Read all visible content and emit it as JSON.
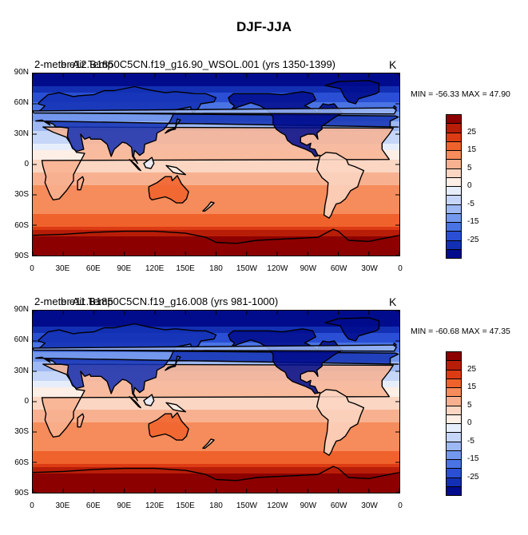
{
  "figure": {
    "title": "DJF-JJA",
    "lat_ticks": [
      "90N",
      "60N",
      "30N",
      "0",
      "30S",
      "60S",
      "90S"
    ],
    "lon_ticks": [
      "0",
      "30E",
      "60E",
      "90E",
      "120E",
      "150E",
      "180",
      "150W",
      "120W",
      "90W",
      "60W",
      "30W",
      "0"
    ],
    "colorbar_labels": [
      "25",
      "15",
      "5",
      "0",
      "-5",
      "-15",
      "-25"
    ],
    "colorbar_colors": [
      "#8c0000",
      "#b81d08",
      "#dc3b14",
      "#f0622c",
      "#f68b5b",
      "#f8b190",
      "#fbd6c3",
      "#fdeee6",
      "#e7eefb",
      "#c5d6f8",
      "#9db8f2",
      "#7397ec",
      "#4a73e4",
      "#2a4fd5",
      "#1330b4",
      "#000c8c"
    ]
  },
  "panels": [
    {
      "title_left": "2-meter Air Temp",
      "title_center": "b.e12.B1850C5CN.f19_g16.90_WSOL.001 (yrs 1350-1399)",
      "units": "K",
      "minmax": "MIN = -56.33 MAX =  47.90"
    },
    {
      "title_left": "2-meter Air Temp",
      "title_center": "b.e11.B1850C5CN.f19_g16.008 (yrs 981-1000)",
      "units": "K",
      "minmax": "MIN = -60.68 MAX =  47.35"
    }
  ],
  "chart_data": [
    {
      "type": "heatmap",
      "title": "2-meter Air Temp",
      "subtitle": "b.e12.B1850C5CN.f19_g16.90_WSOL.001 (yrs 1350-1399)",
      "units": "K",
      "min": -56.33,
      "max": 47.9,
      "x_ticks": [
        "0",
        "30E",
        "60E",
        "90E",
        "120E",
        "150E",
        "180",
        "150W",
        "120W",
        "90W",
        "60W",
        "30W",
        "0"
      ],
      "y_ticks": [
        "90N",
        "60N",
        "30N",
        "0",
        "30S",
        "60S",
        "90S"
      ],
      "xlim": [
        0,
        360
      ],
      "ylim": [
        -90,
        90
      ],
      "colorbar_levels": [
        -35,
        -30,
        -25,
        -20,
        -15,
        -10,
        -5,
        -2.5,
        0,
        2.5,
        5,
        10,
        15,
        20,
        25,
        30,
        35
      ],
      "zonal_mean_profile": [
        {
          "lat": 85,
          "value": -40
        },
        {
          "lat": 70,
          "value": -30
        },
        {
          "lat": 55,
          "value": -22
        },
        {
          "lat": 40,
          "value": -14
        },
        {
          "lat": 25,
          "value": -6
        },
        {
          "lat": 10,
          "value": -1
        },
        {
          "lat": 0,
          "value": 1
        },
        {
          "lat": -15,
          "value": 4
        },
        {
          "lat": -30,
          "value": 7
        },
        {
          "lat": -45,
          "value": 9
        },
        {
          "lat": -60,
          "value": 15
        },
        {
          "lat": -70,
          "value": 25
        },
        {
          "lat": -85,
          "value": 33
        }
      ]
    },
    {
      "type": "heatmap",
      "title": "2-meter Air Temp",
      "subtitle": "b.e11.B1850C5CN.f19_g16.008 (yrs 981-1000)",
      "units": "K",
      "min": -60.68,
      "max": 47.35,
      "x_ticks": [
        "0",
        "30E",
        "60E",
        "90E",
        "120E",
        "150E",
        "180",
        "150W",
        "120W",
        "90W",
        "60W",
        "30W",
        "0"
      ],
      "y_ticks": [
        "90N",
        "60N",
        "30N",
        "0",
        "30S",
        "60S",
        "90S"
      ],
      "xlim": [
        0,
        360
      ],
      "ylim": [
        -90,
        90
      ],
      "colorbar_levels": [
        -35,
        -30,
        -25,
        -20,
        -15,
        -10,
        -5,
        -2.5,
        0,
        2.5,
        5,
        10,
        15,
        20,
        25,
        30,
        35
      ],
      "zonal_mean_profile": [
        {
          "lat": 85,
          "value": -42
        },
        {
          "lat": 70,
          "value": -31
        },
        {
          "lat": 55,
          "value": -23
        },
        {
          "lat": 40,
          "value": -15
        },
        {
          "lat": 25,
          "value": -7
        },
        {
          "lat": 10,
          "value": -1
        },
        {
          "lat": 0,
          "value": 1
        },
        {
          "lat": -15,
          "value": 4
        },
        {
          "lat": -30,
          "value": 7
        },
        {
          "lat": -45,
          "value": 9
        },
        {
          "lat": -60,
          "value": 15
        },
        {
          "lat": -70,
          "value": 25
        },
        {
          "lat": -85,
          "value": 33
        }
      ]
    }
  ]
}
